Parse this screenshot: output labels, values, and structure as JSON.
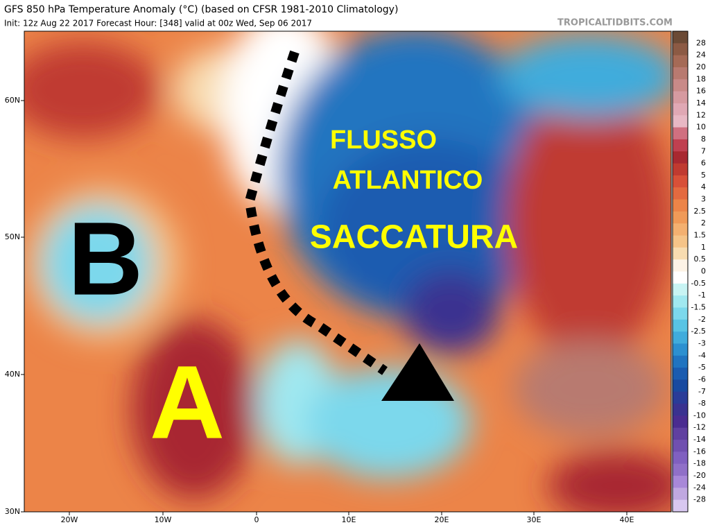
{
  "header": {
    "title": "GFS 850 hPa Temperature Anomaly (°C) (based on CFSR 1981-2010 Climatology)",
    "subtitle": "Init: 12z Aug 22 2017   Forecast Hour: [348]   valid at 00z Wed, Sep 06 2017",
    "source": "TROPICALTIDBITS.COM"
  },
  "annotations": {
    "flusso": "FLUSSO",
    "atlantico": "ATLANTICO",
    "saccatura": "SACCATURA",
    "low": "B",
    "high": "A"
  },
  "latitude_labels": [
    "60N",
    "50N",
    "40N",
    "30N"
  ],
  "longitude_labels": [
    "20W",
    "10W",
    "0",
    "10E",
    "20E",
    "30E",
    "40E"
  ],
  "colorbar": {
    "labels": [
      "28",
      "24",
      "20",
      "18",
      "16",
      "14",
      "12",
      "10",
      "8",
      "7",
      "6",
      "5",
      "4",
      "3",
      "2.5",
      "2",
      "1.5",
      "1",
      "0.5",
      "0",
      "-0.5",
      "-1",
      "-1.5",
      "-2",
      "-2.5",
      "-3",
      "-4",
      "-5",
      "-6",
      "-7",
      "-8",
      "-10",
      "-12",
      "-14",
      "-16",
      "-18",
      "-20",
      "-24",
      "-28"
    ],
    "colors": [
      "#6b4a35",
      "#8c5a44",
      "#a56a56",
      "#b87a70",
      "#c98a88",
      "#d69aa0",
      "#e0a8b4",
      "#e8b8c4",
      "#d07080",
      "#c04050",
      "#a82830",
      "#c03a30",
      "#d85038",
      "#e46a40",
      "#ec8448",
      "#f09a58",
      "#f4b070",
      "#f6c488",
      "#f8dcb0",
      "#fdf3e6",
      "#ffffff",
      "#c8f4f4",
      "#a0e8f0",
      "#7cd8ec",
      "#58c4e4",
      "#40acdc",
      "#2c90d0",
      "#2074c0",
      "#1a5cb0",
      "#184aa0",
      "#2a3c98",
      "#3a3290",
      "#4a2c90",
      "#6040a0",
      "#7050b0",
      "#8060c0",
      "#9070c8",
      "#a888d8",
      "#c0a8e0",
      "#d8c8f0"
    ]
  }
}
